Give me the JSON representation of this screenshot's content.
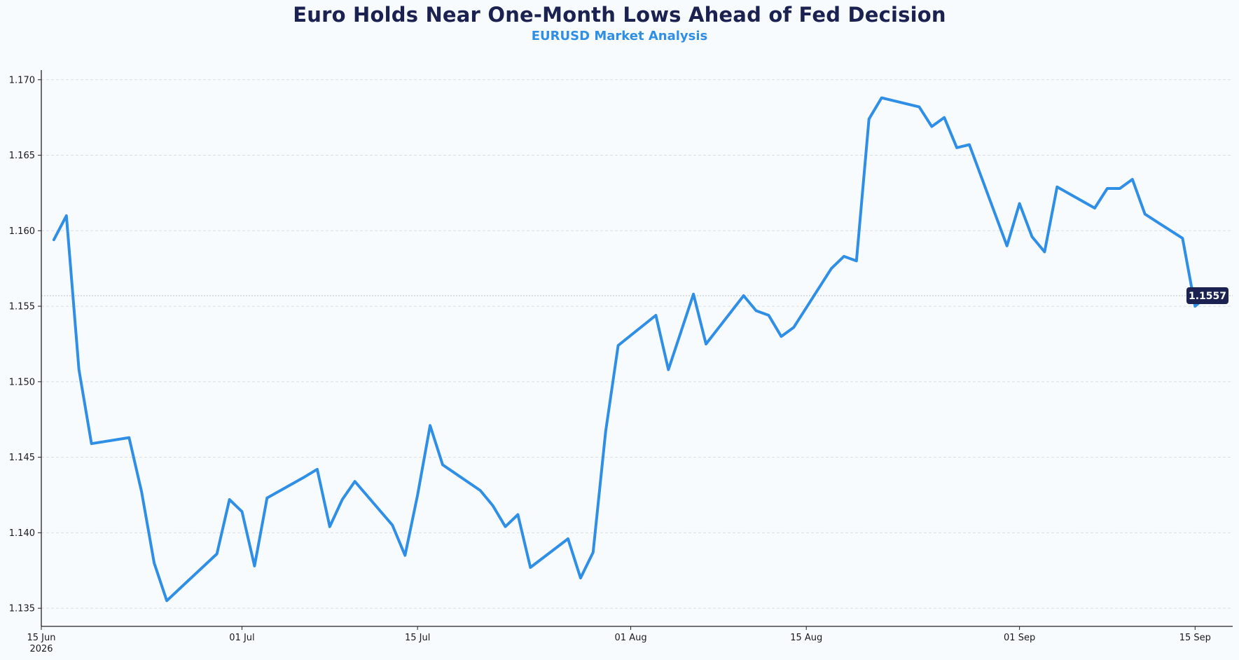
{
  "title": "Euro Holds Near One-Month Lows Ahead of Fed Decision",
  "subtitle": "EURUSD Market Analysis",
  "colors": {
    "line": "#2f8fe6",
    "title": "#1b2150",
    "subtitle": "#2f8fe6",
    "badge": "#1b2150",
    "grid": "#d9dde3",
    "background": "#f8fbfe"
  },
  "chart_data": {
    "type": "line",
    "title": "Euro Holds Near One-Month Lows Ahead of Fed Decision",
    "subtitle": "EURUSD Market Analysis",
    "xlabel": "",
    "ylabel": "",
    "x_axis": "date",
    "xlim": [
      "2026-06-15",
      "2026-09-18"
    ],
    "ylim": [
      1.1338,
      1.1705
    ],
    "yticks": [
      1.135,
      1.14,
      1.145,
      1.15,
      1.155,
      1.16,
      1.165,
      1.17
    ],
    "ytick_labels": [
      "1.135",
      "1.140",
      "1.145",
      "1.150",
      "1.155",
      "1.160",
      "1.165",
      "1.170"
    ],
    "xticks": [
      {
        "date": "2026-06-15",
        "label": "15 Jun",
        "sublabel": "2026"
      },
      {
        "date": "2026-07-01",
        "label": "01 Jul",
        "sublabel": ""
      },
      {
        "date": "2026-07-15",
        "label": "15 Jul",
        "sublabel": ""
      },
      {
        "date": "2026-08-01",
        "label": "01 Aug",
        "sublabel": ""
      },
      {
        "date": "2026-08-15",
        "label": "15 Aug",
        "sublabel": ""
      },
      {
        "date": "2026-09-01",
        "label": "01 Sep",
        "sublabel": ""
      },
      {
        "date": "2026-09-15",
        "label": "15 Sep",
        "sublabel": ""
      }
    ],
    "grid": "horizontal dashed",
    "last_value": 1.1557,
    "last_value_label": "1.1557",
    "series": [
      {
        "x": [
          "2026-06-16",
          "2026-06-17",
          "2026-06-18",
          "2026-06-19",
          "2026-06-22",
          "2026-06-23",
          "2026-06-24",
          "2026-06-25",
          "2026-06-29",
          "2026-06-30",
          "2026-07-01",
          "2026-07-02",
          "2026-07-03",
          "2026-07-06",
          "2026-07-07",
          "2026-07-08",
          "2026-07-09",
          "2026-07-10",
          "2026-07-13",
          "2026-07-14",
          "2026-07-15",
          "2026-07-16",
          "2026-07-17",
          "2026-07-20",
          "2026-07-21",
          "2026-07-22",
          "2026-07-23",
          "2026-07-24",
          "2026-07-27",
          "2026-07-28",
          "2026-07-29",
          "2026-07-30",
          "2026-07-31",
          "2026-08-03",
          "2026-08-04",
          "2026-08-05",
          "2026-08-06",
          "2026-08-07",
          "2026-08-10",
          "2026-08-11",
          "2026-08-12",
          "2026-08-13",
          "2026-08-14",
          "2026-08-17",
          "2026-08-18",
          "2026-08-19",
          "2026-08-20",
          "2026-08-21",
          "2026-08-24",
          "2026-08-25",
          "2026-08-26",
          "2026-08-27",
          "2026-08-28",
          "2026-08-31",
          "2026-09-01",
          "2026-09-02",
          "2026-09-03",
          "2026-09-04",
          "2026-09-07",
          "2026-09-08",
          "2026-09-09",
          "2026-09-10",
          "2026-09-11",
          "2026-09-14",
          "2026-09-15",
          "2026-09-16"
        ],
        "y": [
          1.1594,
          1.161,
          1.1508,
          1.1459,
          1.1463,
          1.1427,
          1.138,
          1.1355,
          1.1386,
          1.1422,
          1.1414,
          1.1378,
          1.1423,
          1.1437,
          1.1442,
          1.1404,
          1.1422,
          1.1434,
          1.1405,
          1.1385,
          1.1425,
          1.1471,
          1.1445,
          1.1428,
          1.1418,
          1.1404,
          1.1412,
          1.1377,
          1.1396,
          1.137,
          1.1387,
          1.1467,
          1.1524,
          1.1544,
          1.1508,
          1.1533,
          1.1558,
          1.1525,
          1.1557,
          1.1547,
          1.1544,
          1.153,
          1.1536,
          1.1575,
          1.1583,
          1.158,
          1.1674,
          1.1688,
          1.1682,
          1.1669,
          1.1675,
          1.1655,
          1.1657,
          1.159,
          1.1618,
          1.1596,
          1.1586,
          1.1629,
          1.1615,
          1.1628,
          1.1628,
          1.1634,
          1.1611,
          1.1595,
          1.155,
          1.1557
        ]
      }
    ]
  }
}
